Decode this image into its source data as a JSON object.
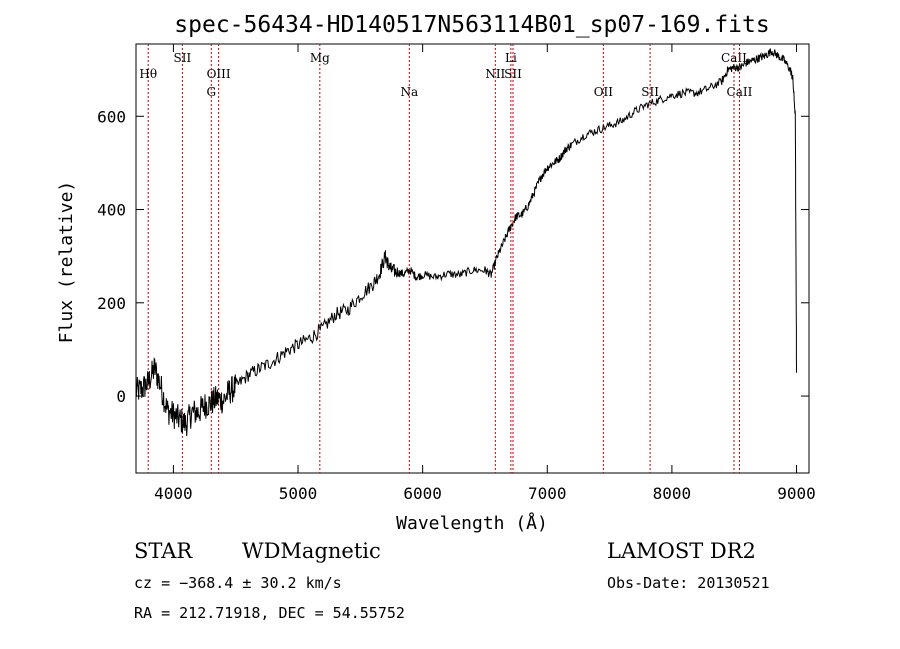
{
  "chart_data": {
    "type": "line",
    "title": "spec-56434-HD140517N563114B01_sp07-169.fits",
    "xlabel": "Wavelength (Å)",
    "ylabel": "Flux (relative)",
    "xlim": [
      3700,
      9100
    ],
    "ylim": [
      -165,
      755
    ],
    "x_ticks": [
      4000,
      5000,
      6000,
      7000,
      8000,
      9000
    ],
    "y_ticks": [
      0,
      200,
      400,
      600
    ],
    "grid": false,
    "line_color": "#000000",
    "marker_color": "#c00000",
    "series": [
      {
        "x": [
          3700,
          3750,
          3800,
          3850,
          3900,
          3950,
          4000,
          4050,
          4100,
          4150,
          4200,
          4250,
          4300,
          4350,
          4400,
          4450,
          4500,
          4600,
          4700,
          4800,
          4900,
          5000,
          5100,
          5200,
          5300,
          5400,
          5500,
          5600,
          5650,
          5700,
          5720,
          5750,
          5800,
          5850,
          5900,
          5950,
          6000,
          6100,
          6200,
          6300,
          6400,
          6500,
          6550,
          6600,
          6650,
          6700,
          6750,
          6800,
          6850,
          6900,
          6950,
          7000,
          7050,
          7100,
          7150,
          7200,
          7300,
          7400,
          7500,
          7600,
          7700,
          7800,
          7900,
          8000,
          8100,
          8200,
          8300,
          8400,
          8450,
          8500,
          8550,
          8600,
          8650,
          8700,
          8750,
          8800,
          8850,
          8900,
          8950,
          8970,
          8990,
          9000
        ],
        "y": [
          10,
          15,
          30,
          60,
          20,
          -30,
          -40,
          -50,
          -60,
          -35,
          -35,
          -20,
          -15,
          -5,
          -10,
          10,
          20,
          45,
          60,
          75,
          95,
          110,
          125,
          145,
          175,
          185,
          215,
          240,
          260,
          300,
          285,
          270,
          265,
          262,
          270,
          255,
          260,
          255,
          262,
          260,
          270,
          270,
          260,
          300,
          330,
          360,
          385,
          390,
          410,
          440,
          470,
          490,
          500,
          510,
          530,
          540,
          560,
          570,
          580,
          590,
          610,
          625,
          635,
          645,
          650,
          650,
          660,
          675,
          700,
          705,
          705,
          715,
          720,
          725,
          730,
          740,
          730,
          720,
          700,
          680,
          600,
          50
        ]
      }
    ],
    "lines": [
      {
        "label": "Hθ",
        "x": 3798,
        "row": 1
      },
      {
        "label": "SII",
        "x": 4072,
        "row": 0
      },
      {
        "label": "OIII",
        "x": 4363,
        "row": 1
      },
      {
        "label": "G",
        "x": 4304,
        "row": 2
      },
      {
        "label": "Mg",
        "x": 5175,
        "row": 0
      },
      {
        "label": "Na",
        "x": 5893,
        "row": 2
      },
      {
        "label": "Li",
        "x": 6708,
        "row": 0
      },
      {
        "label": "NII",
        "x": 6583,
        "row": 1
      },
      {
        "label": "SII",
        "x": 6725,
        "row": 1
      },
      {
        "label": "OII",
        "x": 7450,
        "row": 2
      },
      {
        "label": "SII",
        "x": 7825,
        "row": 2
      },
      {
        "label": "CaII",
        "x": 8498,
        "row": 0
      },
      {
        "label": "CaII",
        "x": 8542,
        "row": 2
      }
    ]
  },
  "info": {
    "object_class": "STAR",
    "subclass": "WDMagnetic",
    "survey": "LAMOST DR2",
    "cz": "cz = −368.4 ± 30.2 km/s",
    "obs_date": "Obs-Date: 20130521",
    "coords": "RA = 212.71918, DEC =  54.55752"
  }
}
